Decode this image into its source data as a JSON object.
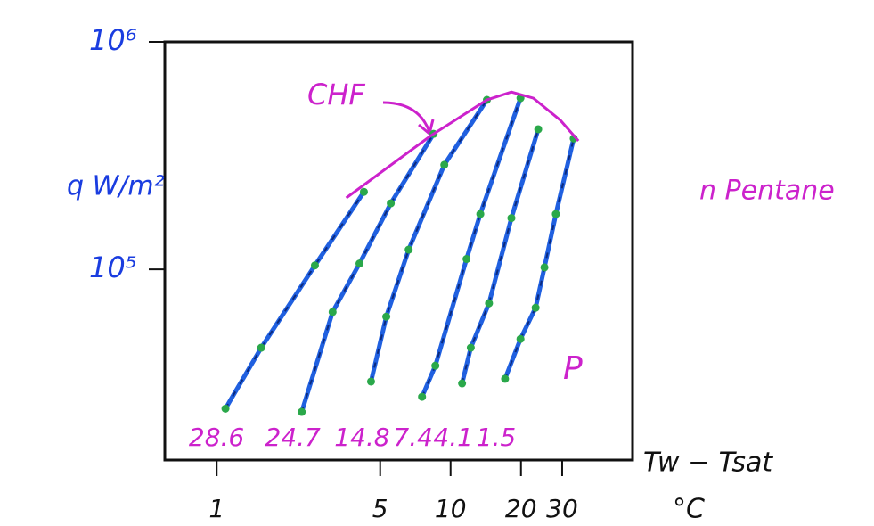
{
  "chart_data": {
    "type": "line",
    "xscale": "log",
    "yscale": "log",
    "xlim": [
      0.6,
      60
    ],
    "ylim": [
      14500,
      1000000
    ],
    "xticks": [
      1,
      5,
      10,
      20,
      30
    ],
    "yticks": [
      {
        "value": 1000000,
        "label": "10⁶"
      },
      {
        "value": 100000,
        "label": "10⁵"
      }
    ],
    "y_label": "q W/m²",
    "x_label": "Tw − Tsat",
    "x_unit": "°C",
    "annotations": {
      "fluid": "n Pentane",
      "pressure": "P",
      "chf": "CHF"
    },
    "line_color": "#2060e0",
    "dot_color": "#2aa84a",
    "label_color": "#cc22cc",
    "series": [
      {
        "name": "28.6",
        "x": [
          1.09,
          1.55,
          2.63,
          4.26
        ],
        "values": [
          24400,
          45200,
          104000,
          219000
        ]
      },
      {
        "name": "24.7",
        "x": [
          2.31,
          3.13,
          4.08,
          5.55,
          8.46
        ],
        "values": [
          23600,
          64900,
          106000,
          195000,
          394000
        ]
      },
      {
        "name": "14.8",
        "x": [
          4.57,
          5.31,
          6.62,
          9.4,
          14.3
        ],
        "values": [
          32100,
          61900,
          122000,
          288000,
          556000
        ]
      },
      {
        "name": "7.4",
        "x": [
          7.55,
          8.61,
          11.7,
          13.4,
          19.9
        ],
        "values": [
          27500,
          37700,
          111000,
          175000,
          566000
        ]
      },
      {
        "name": "4.1",
        "x": [
          11.2,
          12.2,
          14.6,
          18.2,
          23.7
        ],
        "values": [
          31500,
          45200,
          70900,
          168000,
          413000
        ]
      },
      {
        "name": "1.5",
        "x": [
          17.1,
          19.9,
          23.1,
          25.2,
          28.2,
          33.6
        ],
        "values": [
          33000,
          49400,
          67800,
          102000,
          175000,
          376000
        ]
      }
    ],
    "chf_curve": {
      "x": [
        3.58,
        8.24,
        14.3,
        18.2,
        22.6,
        29.5,
        35.2
      ],
      "values": [
        206000,
        387000,
        556000,
        602000,
        566000,
        452000,
        367000
      ],
      "color": "#cc22cc"
    }
  }
}
